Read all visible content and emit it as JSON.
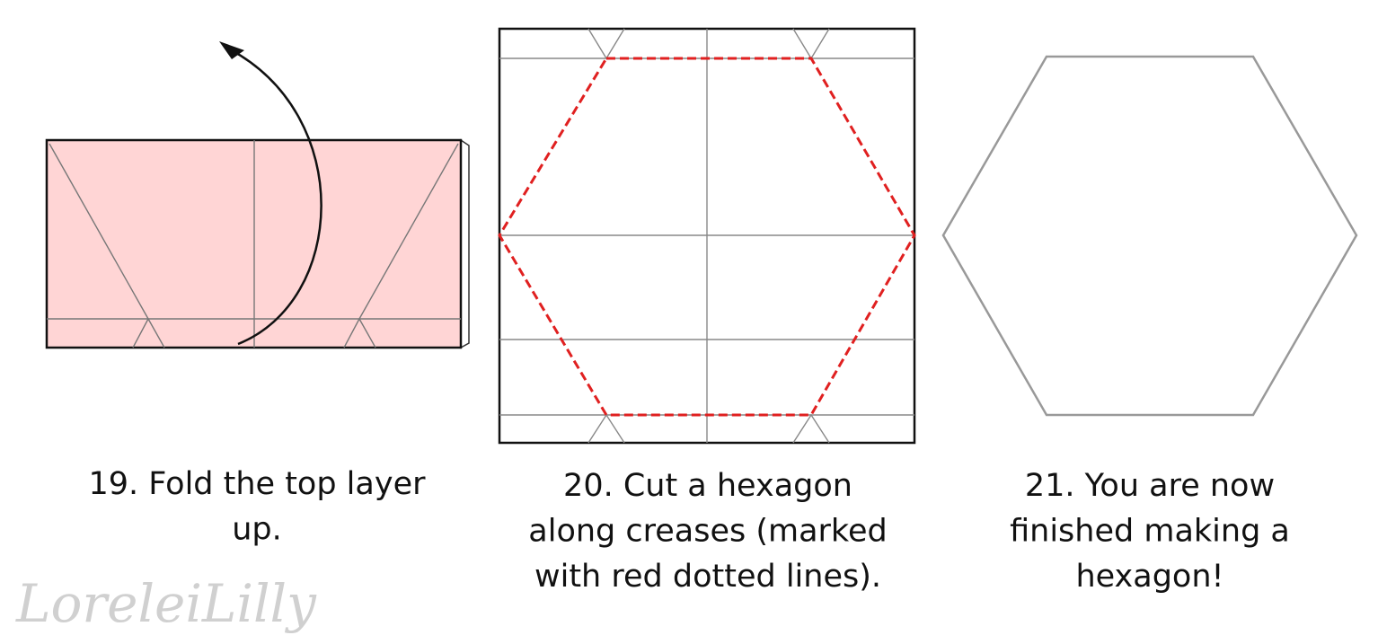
{
  "steps": [
    {
      "caption_lines": [
        "19. Fold the top layer",
        "up."
      ]
    },
    {
      "caption_lines": [
        "20. Cut a hexagon",
        "along creases (marked",
        "with red dotted lines)."
      ]
    },
    {
      "caption_lines": [
        "21. You are now",
        "finished making a",
        "hexagon!"
      ]
    }
  ],
  "watermark": "LoreleiLilly"
}
